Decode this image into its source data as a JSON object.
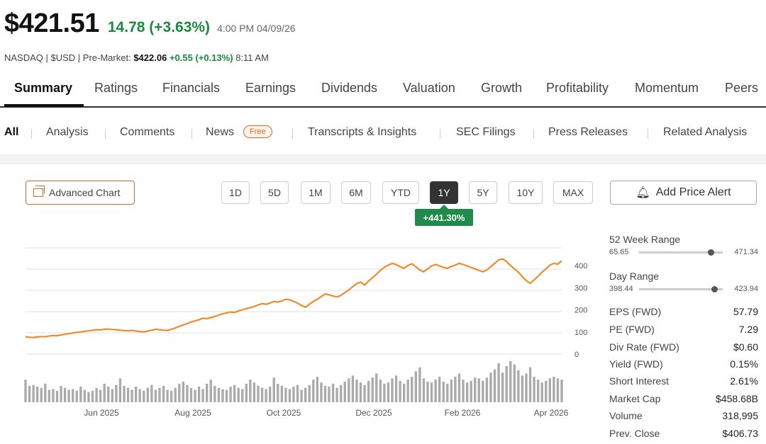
{
  "quote": {
    "price": "$421.51",
    "change": "14.78 (+3.63%)",
    "timestamp": "4:00 PM 04/09/26",
    "exchange_info": "NASDAQ | $USD | Pre-Market:",
    "premarket_price": "$422.06",
    "premarket_change": "+0.55 (+0.13%)",
    "premarket_time": "8:11 AM"
  },
  "tabs": [
    "Summary",
    "Ratings",
    "Financials",
    "Earnings",
    "Dividends",
    "Valuation",
    "Growth",
    "Profitability",
    "Momentum",
    "Peers"
  ],
  "active_tab": "Summary",
  "subtabs": {
    "all": "All",
    "analysis": "Analysis",
    "comments": "Comments",
    "news": "News",
    "free_badge": "Free",
    "transcripts": "Transcripts & Insights",
    "sec": "SEC Filings",
    "press": "Press Releases",
    "related": "Related Analysis"
  },
  "chart_controls": {
    "advanced_chart": "Advanced Chart",
    "ranges": [
      "1D",
      "5D",
      "1M",
      "6M",
      "YTD",
      "1Y",
      "5Y",
      "10Y",
      "MAX"
    ],
    "active_range": "1Y",
    "performance": "+441.30%",
    "add_alert": "Add Price Alert"
  },
  "colors": {
    "accent": "#e0662a",
    "positive": "#1a8a3e",
    "line": "#f08a2c",
    "volume": "#aaaaaa"
  },
  "chart_data": {
    "type": "line",
    "x_labels": [
      "Jun 2025",
      "Aug 2025",
      "Oct 2025",
      "Dec 2025",
      "Feb 2026",
      "Apr 2026"
    ],
    "y_ticks": [
      0,
      100,
      200,
      300,
      400
    ],
    "ylim": [
      0,
      480
    ],
    "price_series": [
      78,
      76,
      75,
      77,
      79,
      78,
      82,
      84,
      83,
      86,
      90,
      92,
      95,
      98,
      100,
      103,
      105,
      108,
      110,
      109,
      112,
      113,
      111,
      110,
      108,
      106,
      105,
      107,
      104,
      102,
      100,
      104,
      108,
      112,
      110,
      108,
      107,
      112,
      118,
      125,
      132,
      138,
      145,
      150,
      155,
      162,
      160,
      165,
      170,
      176,
      182,
      186,
      190,
      188,
      195,
      200,
      205,
      210,
      215,
      222,
      228,
      225,
      230,
      238,
      235,
      240,
      248,
      245,
      238,
      230,
      220,
      212,
      225,
      238,
      248,
      260,
      272,
      268,
      262,
      258,
      265,
      278,
      290,
      305,
      318,
      325,
      312,
      330,
      345,
      360,
      378,
      392,
      402,
      410,
      405,
      395,
      388,
      400,
      408,
      395,
      380,
      372,
      385,
      398,
      405,
      398,
      392,
      388,
      396,
      402,
      410,
      405,
      398,
      392,
      385,
      378,
      372,
      380,
      395,
      410,
      425,
      430,
      418,
      400,
      385,
      370,
      350,
      332,
      320,
      335,
      352,
      370,
      385,
      402,
      410,
      406,
      421
    ],
    "volume_series": [
      55,
      40,
      42,
      38,
      35,
      45,
      30,
      32,
      28,
      40,
      35,
      30,
      32,
      28,
      38,
      30,
      25,
      28,
      35,
      30,
      45,
      38,
      32,
      42,
      58,
      40,
      35,
      30,
      38,
      32,
      28,
      35,
      42,
      30,
      35,
      40,
      30,
      28,
      35,
      45,
      50,
      42,
      35,
      30,
      38,
      32,
      45,
      55,
      40,
      35,
      32,
      30,
      38,
      42,
      35,
      32,
      45,
      55,
      48,
      40,
      35,
      32,
      38,
      60,
      45,
      40,
      35,
      32,
      38,
      42,
      30,
      35,
      42,
      55,
      62,
      48,
      40,
      38,
      45,
      35,
      42,
      50,
      58,
      65,
      55,
      48,
      42,
      52,
      60,
      70,
      55,
      45,
      48,
      58,
      65,
      52,
      45,
      55,
      62,
      75,
      85,
      58,
      50,
      48,
      55,
      62,
      50,
      45,
      55,
      62,
      70,
      55,
      48,
      52,
      60,
      58,
      52,
      60,
      72,
      80,
      95,
      72,
      88,
      100,
      92,
      78,
      65,
      70,
      85,
      62,
      55,
      48,
      52,
      58,
      62,
      58,
      55
    ]
  },
  "stats": {
    "week52": {
      "label": "52 Week Range",
      "low": "65.65",
      "high": "471.34",
      "position": 0.86
    },
    "day": {
      "label": "Day Range",
      "low": "398.44",
      "high": "423.94",
      "position": 0.9
    },
    "rows": [
      {
        "label": "EPS (FWD)",
        "value": "57.79"
      },
      {
        "label": "PE (FWD)",
        "value": "7.29"
      },
      {
        "label": "Div Rate (FWD)",
        "value": "$0.60"
      },
      {
        "label": "Yield (FWD)",
        "value": "0.15%"
      },
      {
        "label": "Short Interest",
        "value": "2.61%"
      },
      {
        "label": "Market Cap",
        "value": "$458.68B"
      },
      {
        "label": "Volume",
        "value": "318,995"
      },
      {
        "label": "Prev. Close",
        "value": "$406.73"
      }
    ]
  }
}
